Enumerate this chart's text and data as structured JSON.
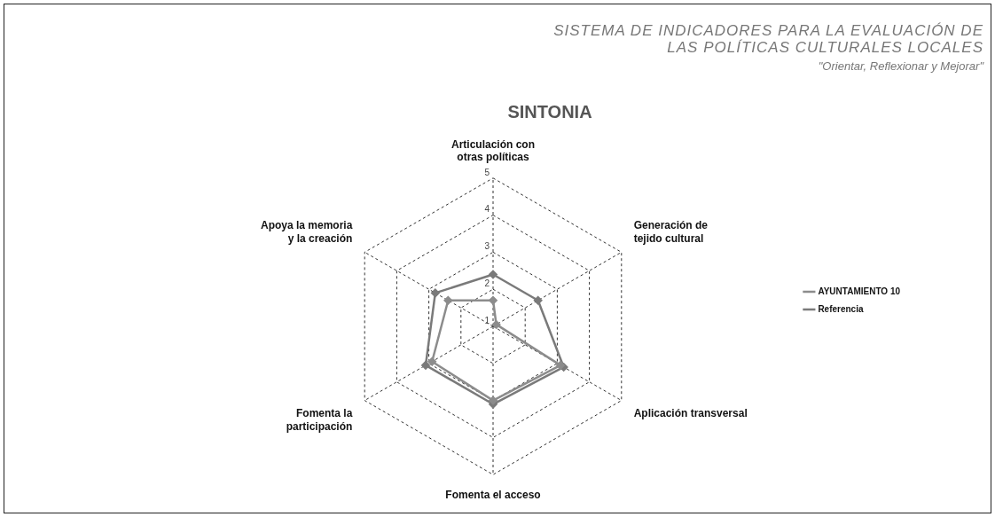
{
  "chart_data": {
    "type": "radar",
    "title": "SINTONIA",
    "annotations": [
      "SISTEMA DE INDICADORES PARA LA EVALUACIÓN DE",
      "LAS POLÍTICAS CULTURALES LOCALES",
      "\"Orientar, Reflexionar y Mejorar\""
    ],
    "categories": [
      "Articulación con otras políticas",
      "Generación de tejido cultural",
      "Aplicación transversal",
      "Fomenta el acceso",
      "Fomenta la participación",
      "Apoya la memoria y la creación"
    ],
    "series": [
      {
        "name": "AYUNTAMIENTO 10",
        "color": "#8c8c8c",
        "values": [
          1.7,
          1.1,
          3.1,
          3.0,
          2.9,
          2.4
        ]
      },
      {
        "name": "Referencia",
        "color": "#7a7a7a",
        "values": [
          2.4,
          2.4,
          3.2,
          3.1,
          3.1,
          2.8
        ]
      }
    ],
    "ylim": [
      1,
      5
    ],
    "yticks": [
      1,
      2,
      3,
      4,
      5
    ],
    "grid": true,
    "legend": "right",
    "marker": "diamond",
    "line_style": "solid"
  }
}
